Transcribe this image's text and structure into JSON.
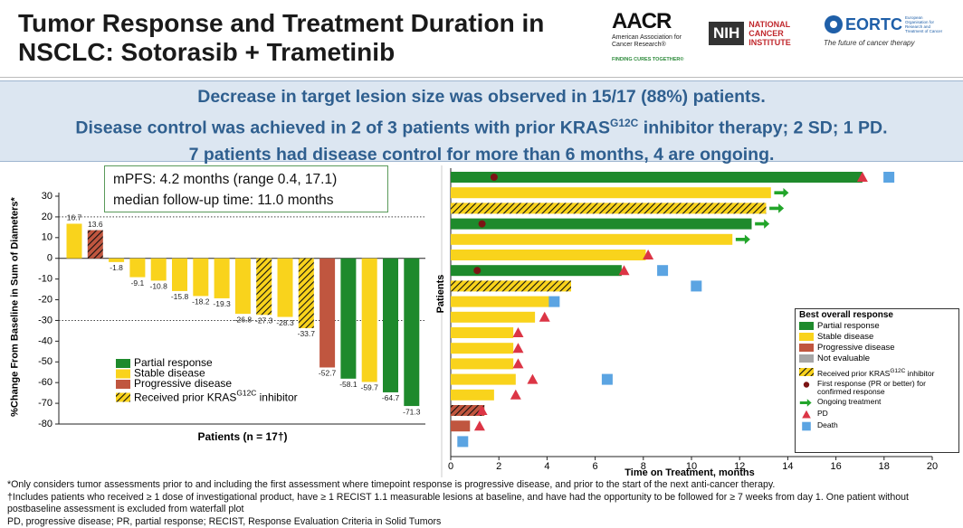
{
  "header": {
    "title": "Tumor Response and Treatment Duration in NSCLC: Sotorasib + Trametinib",
    "logos": {
      "aacr": "AACR",
      "aacr_sub": "American Association for Cancer Research®",
      "aacr_tag": "FINDING CURES TOGETHER®",
      "nih": "NIH",
      "nci": "NATIONAL CANCER INSTITUTE",
      "eortc": "EORTC",
      "eortc_sub": "European Organisation for Research and Treatment of Cancer",
      "eortc_tag": "The future of cancer therapy"
    }
  },
  "banner": {
    "lines": [
      {
        "text": "Decrease in target lesion size was observed in 15/17 (88%) patients."
      },
      {
        "text": "Disease control was achieved in 2 of 3 patients with prior KRAS",
        "sup": "G12C",
        "after": " inhibitor therapy; 2 SD; 1 PD."
      },
      {
        "text": "7 patients had disease control for more than 6 months, 4 are ongoing."
      }
    ]
  },
  "chart_data": [
    {
      "type": "waterfall",
      "annotations": [
        "mPFS: 4.2 months (range 0.4, 17.1)",
        "median follow-up time: 11.0 months"
      ],
      "ylabel": "%Change From Baseline in Sum of Diameters*",
      "xlabel": "Patients (n = 17†)",
      "series": [
        {
          "name": "Partial response",
          "color": "#1e8a2c",
          "values": [
            null,
            null,
            null,
            null,
            null,
            null,
            null,
            null,
            null,
            null,
            null,
            null,
            null,
            -58.1,
            null,
            -64.7,
            -71.3
          ]
        },
        {
          "name": "Stable disease",
          "color": "#f9d31c",
          "values": [
            16.7,
            null,
            -1.8,
            -9.1,
            -10.8,
            -15.8,
            -18.2,
            -19.3,
            -26.8,
            -27.3,
            -28.3,
            -33.7,
            null,
            null,
            -59.7,
            null,
            null
          ]
        },
        {
          "name": "Progressive disease",
          "color": "#c0563f",
          "values": [
            null,
            13.6,
            null,
            null,
            null,
            null,
            null,
            null,
            null,
            null,
            null,
            null,
            -52.7,
            null,
            null,
            null,
            null
          ]
        }
      ],
      "prior_kras": [
        false,
        true,
        false,
        false,
        false,
        false,
        false,
        false,
        false,
        true,
        false,
        true,
        false,
        false,
        false,
        false,
        false
      ],
      "hatch_label": {
        "text": "Received prior KRAS",
        "sup": "G12C",
        "after": " inhibitor"
      },
      "reference_lines": [
        20,
        -30
      ],
      "ylim": [
        -80,
        30
      ],
      "yticks": [
        -80,
        -70,
        -60,
        -50,
        -40,
        -30,
        -20,
        -10,
        0,
        10,
        20,
        30
      ]
    },
    {
      "type": "swimmer",
      "ylabel": "Patients",
      "xlabel": "Time on Treatment, months",
      "legend_title": "Best overall response",
      "series": [
        {
          "name": "Partial  response",
          "color": "#1e8a2c",
          "values": [
            17.1,
            null,
            null,
            12.5,
            null,
            null,
            7.1,
            null,
            null,
            null,
            null,
            null,
            null,
            null,
            null,
            null,
            null,
            null
          ]
        },
        {
          "name": "Stable disease",
          "color": "#f9d31c",
          "values": [
            null,
            13.3,
            13.1,
            null,
            11.7,
            8.1,
            null,
            5.0,
            4.1,
            3.5,
            2.6,
            2.6,
            2.6,
            2.7,
            1.8,
            null,
            null,
            null
          ]
        },
        {
          "name": "Progressive disease",
          "color": "#c0563f",
          "values": [
            null,
            null,
            null,
            null,
            null,
            null,
            null,
            null,
            null,
            null,
            null,
            null,
            null,
            null,
            null,
            1.4,
            0.8,
            null
          ]
        },
        {
          "name": "Not evaluable",
          "color": "#a6a6a6",
          "values": [
            null,
            null,
            null,
            null,
            null,
            null,
            null,
            null,
            null,
            null,
            null,
            null,
            null,
            null,
            null,
            null,
            null,
            null
          ]
        }
      ],
      "prior_kras": [
        false,
        false,
        true,
        false,
        false,
        false,
        false,
        true,
        false,
        false,
        false,
        false,
        false,
        false,
        false,
        true,
        false,
        false
      ],
      "hatch_label": {
        "text": "Received prior KRAS",
        "sup": "G12C",
        "after": " inhibitor"
      },
      "markers": [
        {
          "name": "First response (PR or better) for confirmed response",
          "marker": "circle",
          "color": "#7b1414",
          "values": [
            1.8,
            null,
            null,
            1.3,
            null,
            null,
            1.1,
            null,
            null,
            null,
            null,
            null,
            null,
            null,
            null,
            null,
            null,
            null
          ]
        },
        {
          "name": "Ongoing treatment",
          "marker": "arrow",
          "color": "#22a52a",
          "values": [
            null,
            13.4,
            13.2,
            12.6,
            11.8,
            null,
            null,
            null,
            null,
            null,
            null,
            null,
            null,
            null,
            null,
            null,
            null,
            null
          ]
        },
        {
          "name": "PD",
          "marker": "triangle",
          "color": "#dc3545",
          "values": [
            17.1,
            null,
            null,
            null,
            null,
            8.2,
            7.2,
            null,
            null,
            3.9,
            2.8,
            2.8,
            2.8,
            3.4,
            2.7,
            1.3,
            1.2,
            null
          ]
        },
        {
          "name": "Death",
          "marker": "square",
          "color": "#5ba4e2",
          "values": [
            18.2,
            null,
            null,
            null,
            null,
            null,
            8.8,
            10.2,
            4.3,
            null,
            null,
            null,
            null,
            6.5,
            null,
            null,
            null,
            0.5
          ]
        }
      ],
      "xlim": [
        0,
        20
      ],
      "xticks": [
        0,
        2,
        4,
        6,
        8,
        10,
        12,
        14,
        16,
        18,
        20
      ]
    }
  ],
  "footnotes": [
    "*Only considers tumor assessments prior to and including the first assessment where timepoint response is progressive disease, and prior to the start of the next anti-cancer therapy.",
    "†Includes patients who received ≥ 1 dose of investigational product, have ≥ 1 RECIST 1.1 measurable lesions at baseline, and have had the opportunity to be followed for ≥ 7 weeks from day 1. One patient without postbaseline assessment is excluded from waterfall plot",
    "PD, progressive disease; PR, partial response; RECIST, Response Evaluation Criteria in Solid Tumors"
  ]
}
